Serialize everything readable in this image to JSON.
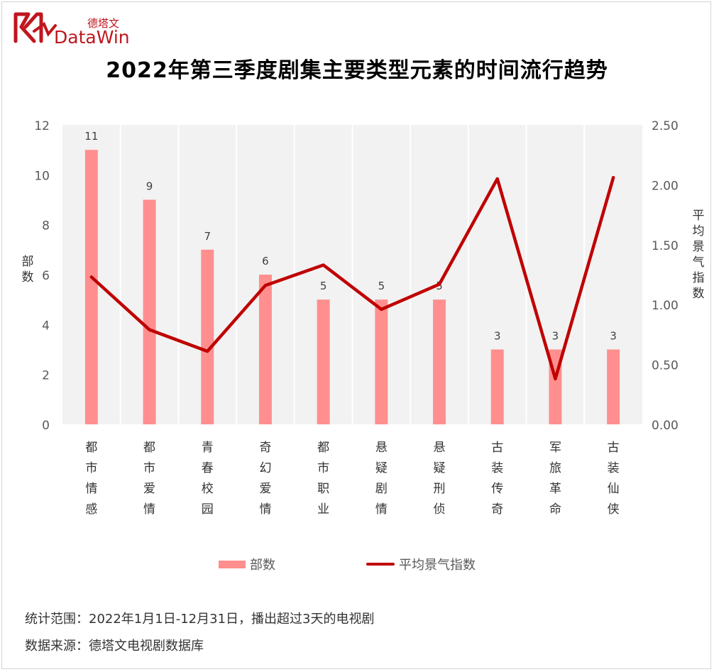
{
  "logo": {
    "brand_cn": "德塔文",
    "brand_en": "DataWin"
  },
  "title": "2022年第三季度剧集主要类型元素的时间流行趋势",
  "legend": {
    "bar_label": "部数",
    "line_label": "平均景气指数"
  },
  "footnotes": {
    "scope": "统计范围：2022年1月1日-12月31日，播出超过3天的电视剧",
    "source": "数据来源：德塔文电视剧数据库"
  },
  "colors": {
    "bar": "#ff8f8f",
    "line": "#c00000",
    "plot_bg": "#f2f2f2",
    "grid": "#ffffff",
    "brand": "#c0161e"
  },
  "chart_data": {
    "type": "bar+line",
    "categories": [
      "都市情感",
      "都市爱情",
      "青春校园",
      "奇幻爱情",
      "都市职业",
      "悬疑剧情",
      "悬疑刑侦",
      "古装传奇",
      "军旅革命",
      "古装仙侠"
    ],
    "series": [
      {
        "name": "部数",
        "type": "bar",
        "axis": "left",
        "values": [
          11,
          9,
          7,
          6,
          5,
          5,
          5,
          3,
          3,
          3
        ],
        "labels": [
          "11",
          "9",
          "7",
          "6",
          "5",
          "5",
          "5",
          "3",
          "3",
          "3"
        ]
      },
      {
        "name": "平均景气指数",
        "type": "line",
        "axis": "right",
        "values": [
          1.23,
          0.79,
          0.61,
          1.16,
          1.33,
          0.96,
          1.17,
          2.05,
          0.38,
          2.06
        ]
      }
    ],
    "ylabel_left": "部数",
    "ylabel_right": "平均景气指数",
    "ylim_left": [
      0,
      12
    ],
    "yticks_left": [
      "0",
      "2",
      "4",
      "6",
      "8",
      "10",
      "12"
    ],
    "ylim_right": [
      0,
      2.5
    ],
    "yticks_right": [
      "0.00",
      "0.50",
      "1.00",
      "1.50",
      "2.00",
      "2.50"
    ],
    "grid": "vertical-category",
    "legend_position": "bottom"
  }
}
